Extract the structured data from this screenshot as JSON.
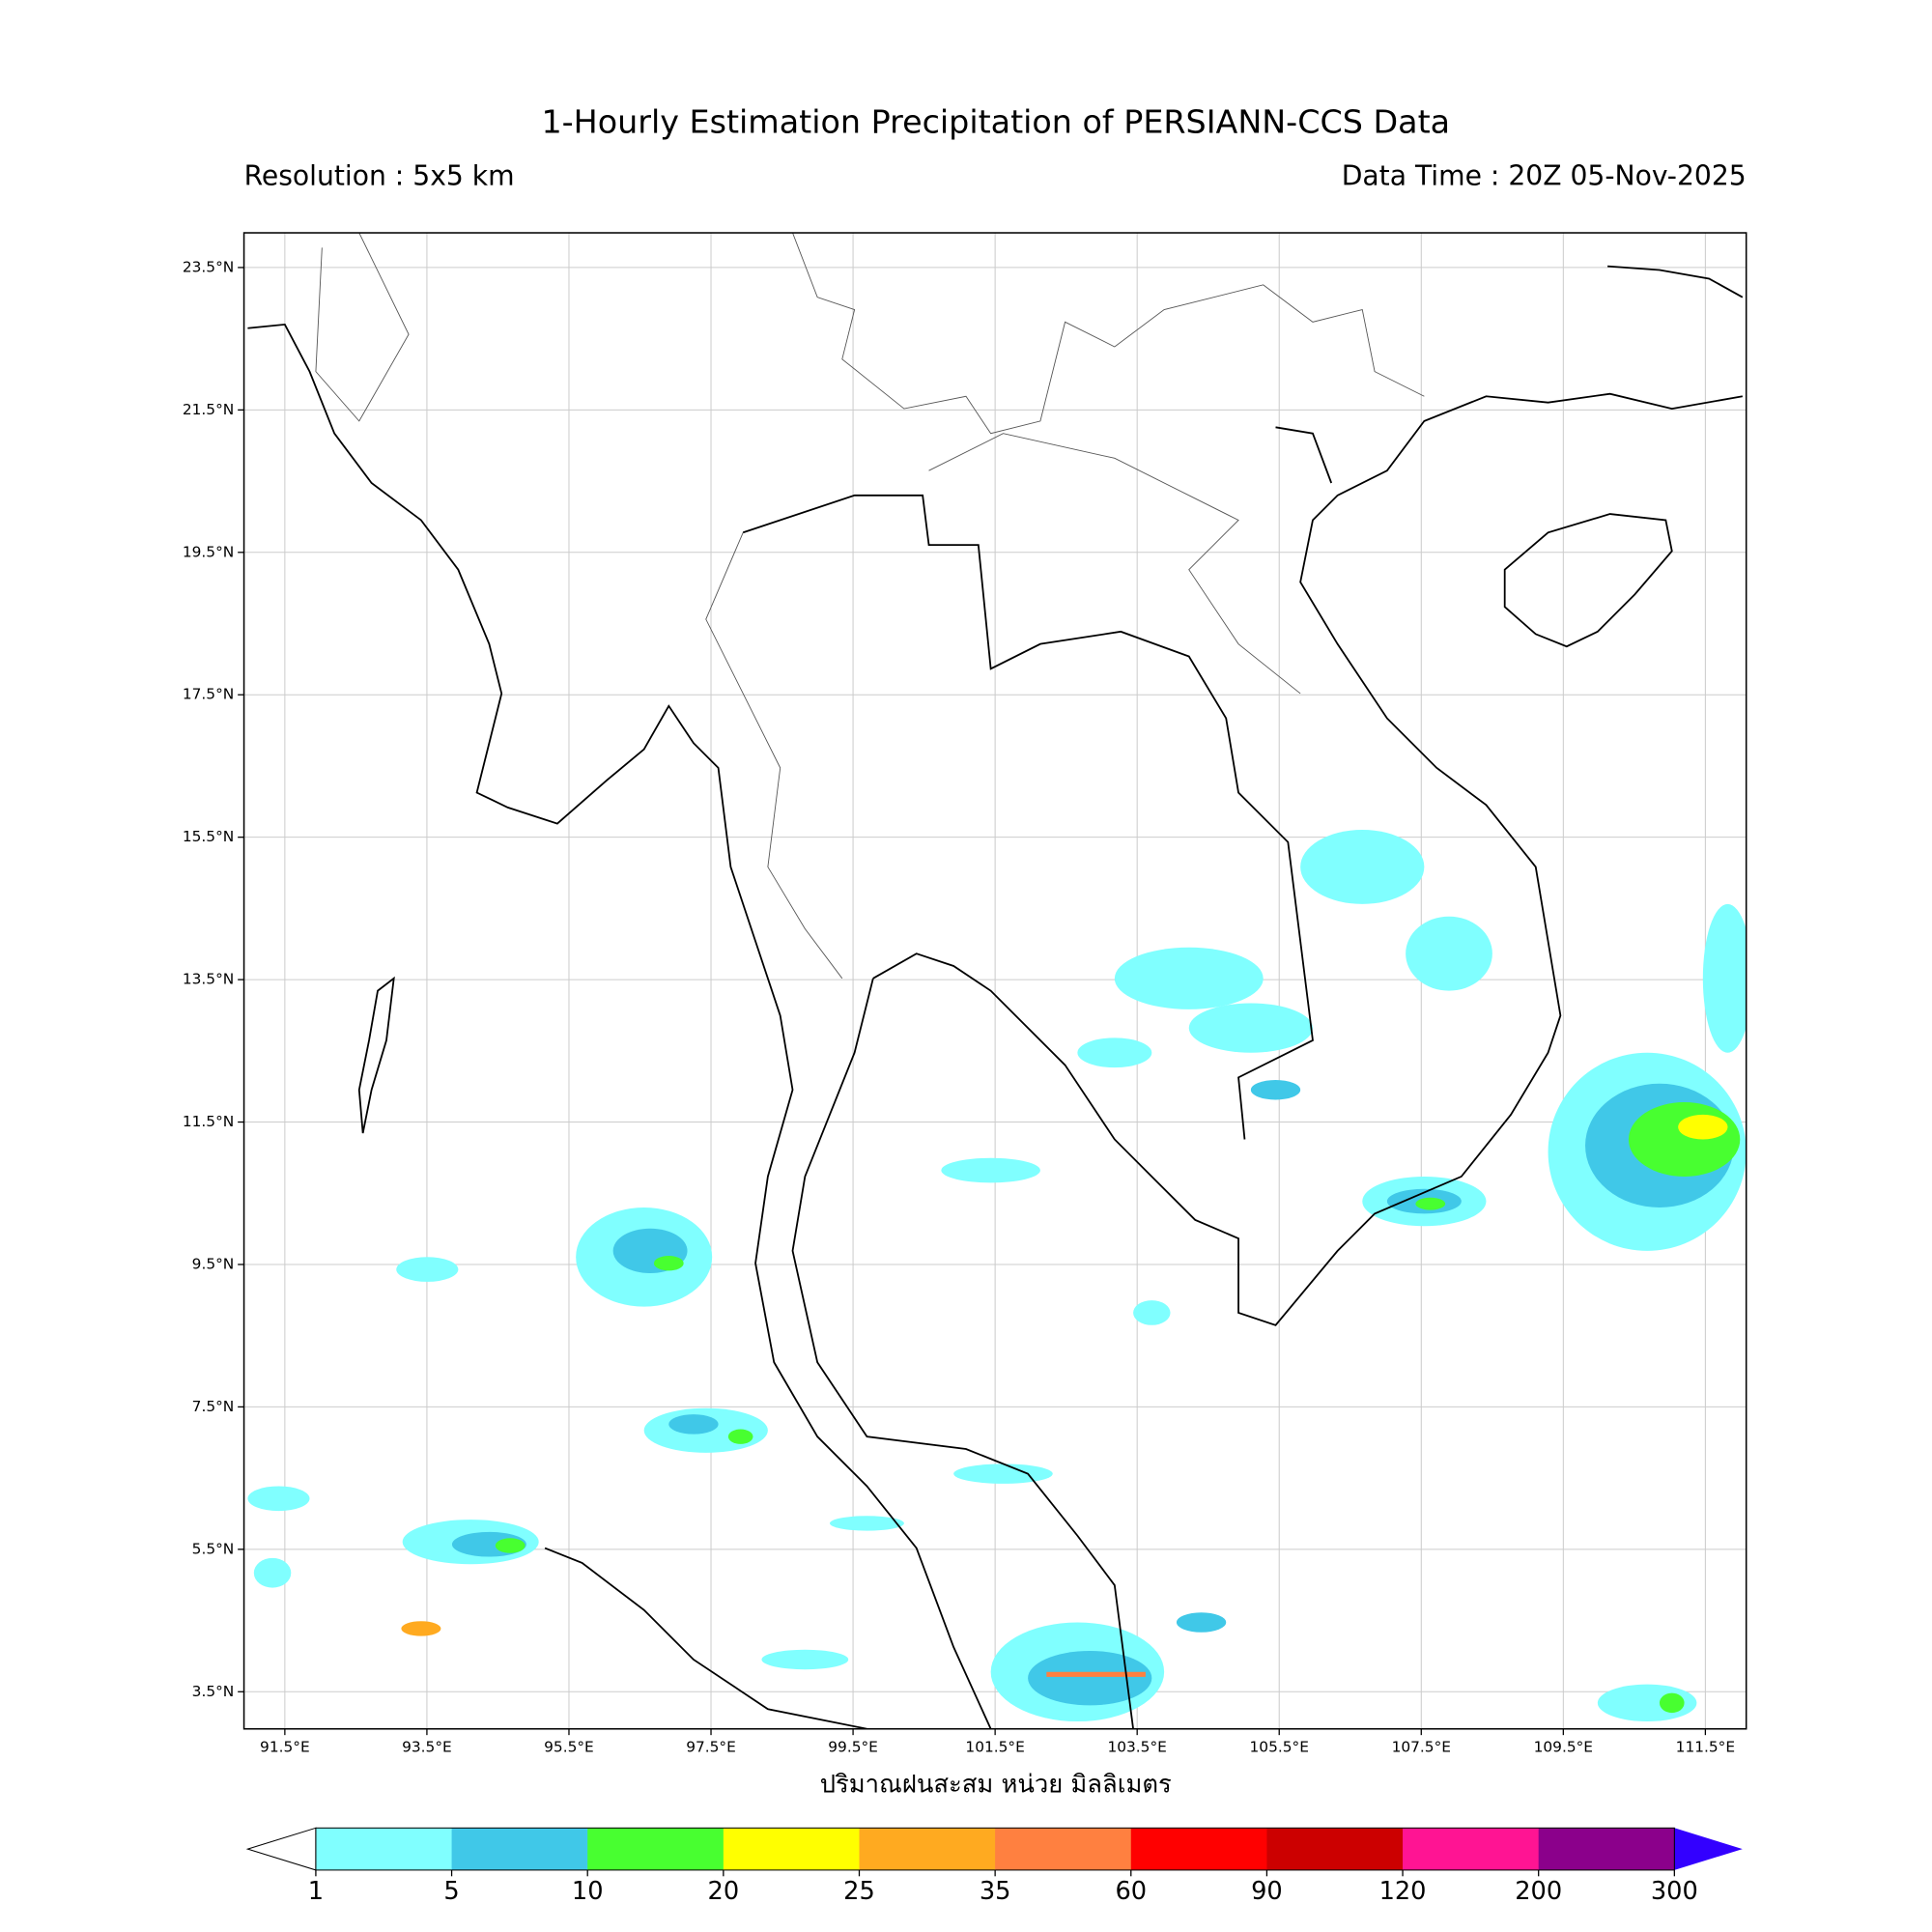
{
  "header": {
    "title": "1-Hourly Estimation Precipitation of PERSIANN-CCS Data",
    "resolution": "Resolution : 5x5 km",
    "data_time": "Data Time : 20Z 05-Nov-2025"
  },
  "map": {
    "lat_labels": [
      "23.5°N",
      "21.5°N",
      "19.5°N",
      "17.5°N",
      "15.5°N",
      "13.5°N",
      "11.5°N",
      "9.5°N",
      "7.5°N",
      "5.5°N",
      "3.5°N"
    ],
    "lon_labels": [
      "91.5°E",
      "93.5°E",
      "95.5°E",
      "97.5°E",
      "99.5°E",
      "101.5°E",
      "103.5°E",
      "105.5°E",
      "107.5°E",
      "109.5°E",
      "111.5°E"
    ],
    "xlabel": "ปริมาณฝนสะสม หน่วย มิลลิเมตร"
  },
  "colorbar": {
    "levels": [
      1,
      5,
      10,
      20,
      25,
      35,
      60,
      90,
      120,
      200,
      300
    ],
    "colors": [
      "#80ffff",
      "#40c8e8",
      "#48ff30",
      "#ffff00",
      "#ffaa20",
      "#ff8040",
      "#ff0000",
      "#cc0000",
      "#ff1493",
      "#8b008b"
    ],
    "over_color": "#3300ff"
  }
}
